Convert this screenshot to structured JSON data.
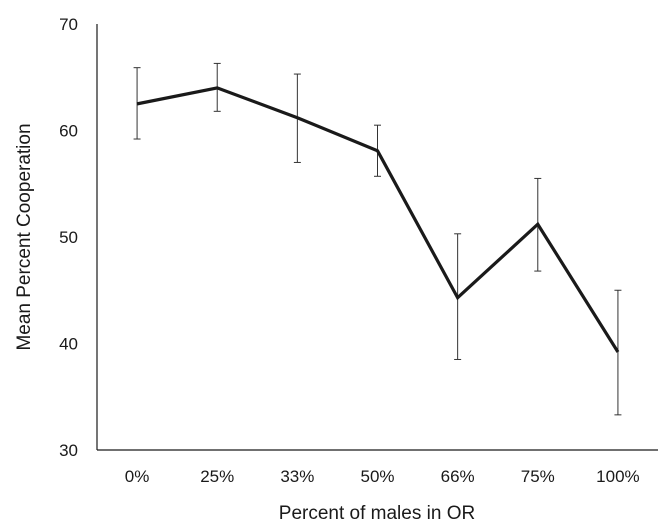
{
  "chart_data": {
    "type": "line",
    "title": "",
    "xlabel": "Percent of males in OR",
    "ylabel": "Mean Percent Cooperation",
    "categories": [
      "0%",
      "25%",
      "33%",
      "50%",
      "66%",
      "75%",
      "100%"
    ],
    "series": [
      {
        "values": [
          62.5,
          64.0,
          61.2,
          58.1,
          44.3,
          51.2,
          39.2
        ],
        "error_low": [
          59.2,
          61.8,
          57.0,
          55.7,
          38.5,
          46.8,
          33.3
        ],
        "error_high": [
          65.9,
          66.3,
          65.3,
          60.5,
          50.3,
          55.5,
          45.0
        ],
        "color": "#1a1a1a"
      }
    ],
    "ylim": [
      30,
      70
    ],
    "yticks": [
      30,
      40,
      50,
      60,
      70
    ],
    "grid": false,
    "legend": "none"
  }
}
